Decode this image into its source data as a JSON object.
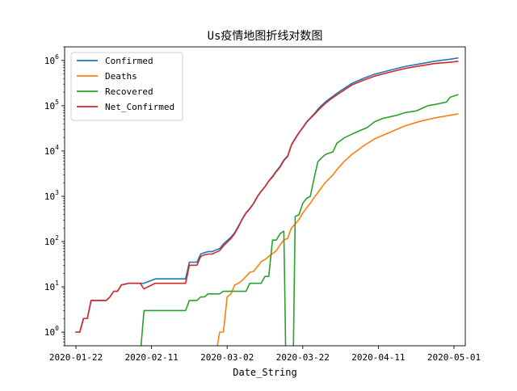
{
  "chart_data": {
    "type": "line",
    "title": "Us疫情地图折线对数图",
    "xlabel": "Date_String",
    "ylabel": "",
    "yscale": "log",
    "ylim": [
      0.5,
      2000000
    ],
    "xlim": [
      "2020-01-19",
      "2020-05-04"
    ],
    "grid": false,
    "legend_position": "upper-left",
    "x_ticks": [
      "2020-01-22",
      "2020-02-11",
      "2020-03-02",
      "2020-03-22",
      "2020-04-11",
      "2020-05-01"
    ],
    "y_ticks": [
      {
        "value": 1,
        "base": "10",
        "exp": "0"
      },
      {
        "value": 10,
        "base": "10",
        "exp": "1"
      },
      {
        "value": 100,
        "base": "10",
        "exp": "2"
      },
      {
        "value": 1000,
        "base": "10",
        "exp": "3"
      },
      {
        "value": 10000,
        "base": "10",
        "exp": "4"
      },
      {
        "value": 100000,
        "base": "10",
        "exp": "5"
      },
      {
        "value": 1000000,
        "base": "10",
        "exp": "6"
      }
    ],
    "series": [
      {
        "name": "Confirmed",
        "color": "#1f77b4",
        "points": [
          [
            "2020-01-22",
            1
          ],
          [
            "2020-01-23",
            1
          ],
          [
            "2020-01-24",
            2
          ],
          [
            "2020-01-25",
            2
          ],
          [
            "2020-01-26",
            5
          ],
          [
            "2020-01-30",
            5
          ],
          [
            "2020-01-31",
            6
          ],
          [
            "2020-02-01",
            8
          ],
          [
            "2020-02-02",
            8
          ],
          [
            "2020-02-03",
            11
          ],
          [
            "2020-02-05",
            12
          ],
          [
            "2020-02-08",
            12
          ],
          [
            "2020-02-09",
            12
          ],
          [
            "2020-02-10",
            13
          ],
          [
            "2020-02-12",
            15
          ],
          [
            "2020-02-20",
            15
          ],
          [
            "2020-02-21",
            35
          ],
          [
            "2020-02-23",
            35
          ],
          [
            "2020-02-24",
            53
          ],
          [
            "2020-02-25",
            57
          ],
          [
            "2020-02-26",
            60
          ],
          [
            "2020-02-27",
            60
          ],
          [
            "2020-02-28",
            65
          ],
          [
            "2020-02-29",
            70
          ],
          [
            "2020-03-01",
            88
          ],
          [
            "2020-03-02",
            105
          ],
          [
            "2020-03-03",
            125
          ],
          [
            "2020-03-04",
            158
          ],
          [
            "2020-03-05",
            221
          ],
          [
            "2020-03-06",
            319
          ],
          [
            "2020-03-07",
            435
          ],
          [
            "2020-03-08",
            541
          ],
          [
            "2020-03-09",
            704
          ],
          [
            "2020-03-10",
            994
          ],
          [
            "2020-03-11",
            1301
          ],
          [
            "2020-03-12",
            1630
          ],
          [
            "2020-03-13",
            2183
          ],
          [
            "2020-03-14",
            2770
          ],
          [
            "2020-03-15",
            3613
          ],
          [
            "2020-03-16",
            4596
          ],
          [
            "2020-03-17",
            6344
          ],
          [
            "2020-03-18",
            7770
          ],
          [
            "2020-03-19",
            13680
          ],
          [
            "2020-03-20",
            19100
          ],
          [
            "2020-03-21",
            25500
          ],
          [
            "2020-03-22",
            33300
          ],
          [
            "2020-03-23",
            43800
          ],
          [
            "2020-03-24",
            53700
          ],
          [
            "2020-03-25",
            65800
          ],
          [
            "2020-03-26",
            83800
          ],
          [
            "2020-03-27",
            101700
          ],
          [
            "2020-03-28",
            121500
          ],
          [
            "2020-03-29",
            140900
          ],
          [
            "2020-03-30",
            161800
          ],
          [
            "2020-03-31",
            188200
          ],
          [
            "2020-04-02",
            243600
          ],
          [
            "2020-04-04",
            311400
          ],
          [
            "2020-04-07",
            400300
          ],
          [
            "2020-04-10",
            496500
          ],
          [
            "2020-04-14",
            607700
          ],
          [
            "2020-04-18",
            735100
          ],
          [
            "2020-04-22",
            840500
          ],
          [
            "2020-04-26",
            965800
          ],
          [
            "2020-04-30",
            1069400
          ],
          [
            "2020-05-02",
            1133000
          ]
        ]
      },
      {
        "name": "Deaths",
        "color": "#ff7f0e",
        "points": [
          [
            "2020-02-28",
            0.3
          ],
          [
            "2020-02-29",
            1
          ],
          [
            "2020-03-01",
            1
          ],
          [
            "2020-03-02",
            6
          ],
          [
            "2020-03-03",
            7
          ],
          [
            "2020-03-04",
            11
          ],
          [
            "2020-03-05",
            12
          ],
          [
            "2020-03-06",
            14
          ],
          [
            "2020-03-07",
            17
          ],
          [
            "2020-03-08",
            21
          ],
          [
            "2020-03-09",
            22
          ],
          [
            "2020-03-10",
            28
          ],
          [
            "2020-03-11",
            36
          ],
          [
            "2020-03-12",
            40
          ],
          [
            "2020-03-13",
            47
          ],
          [
            "2020-03-14",
            54
          ],
          [
            "2020-03-15",
            63
          ],
          [
            "2020-03-16",
            85
          ],
          [
            "2020-03-17",
            108
          ],
          [
            "2020-03-18",
            118
          ],
          [
            "2020-03-19",
            200
          ],
          [
            "2020-03-20",
            244
          ],
          [
            "2020-03-21",
            307
          ],
          [
            "2020-03-22",
            427
          ],
          [
            "2020-03-23",
            552
          ],
          [
            "2020-03-24",
            706
          ],
          [
            "2020-03-25",
            942
          ],
          [
            "2020-03-26",
            1209
          ],
          [
            "2020-03-27",
            1581
          ],
          [
            "2020-03-28",
            2026
          ],
          [
            "2020-03-29",
            2467
          ],
          [
            "2020-03-30",
            2978
          ],
          [
            "2020-03-31",
            3873
          ],
          [
            "2020-04-02",
            5926
          ],
          [
            "2020-04-04",
            8407
          ],
          [
            "2020-04-07",
            12844
          ],
          [
            "2020-04-10",
            18600
          ],
          [
            "2020-04-14",
            25800
          ],
          [
            "2020-04-18",
            35900
          ],
          [
            "2020-04-22",
            45300
          ],
          [
            "2020-04-26",
            53900
          ],
          [
            "2020-04-30",
            61700
          ],
          [
            "2020-05-02",
            65800
          ]
        ]
      },
      {
        "name": "Recovered",
        "color": "#2ca02c",
        "points": [
          [
            "2020-02-08",
            0.3
          ],
          [
            "2020-02-09",
            3
          ],
          [
            "2020-02-20",
            3
          ],
          [
            "2020-02-21",
            5
          ],
          [
            "2020-02-23",
            5
          ],
          [
            "2020-02-24",
            6
          ],
          [
            "2020-02-25",
            6
          ],
          [
            "2020-02-26",
            7
          ],
          [
            "2020-02-29",
            7
          ],
          [
            "2020-03-01",
            8
          ],
          [
            "2020-03-07",
            8
          ],
          [
            "2020-03-08",
            12
          ],
          [
            "2020-03-11",
            12
          ],
          [
            "2020-03-12",
            17
          ],
          [
            "2020-03-13",
            17
          ],
          [
            "2020-03-14",
            108
          ],
          [
            "2020-03-15",
            108
          ],
          [
            "2020-03-16",
            150
          ],
          [
            "2020-03-17",
            170
          ],
          [
            "2020-03-17.5",
            0.3
          ],
          [
            "2020-03-19.5",
            0.3
          ],
          [
            "2020-03-20",
            360
          ],
          [
            "2020-03-21",
            390
          ],
          [
            "2020-03-22",
            700
          ],
          [
            "2020-03-23",
            900
          ],
          [
            "2020-03-24",
            1000
          ],
          [
            "2020-03-25",
            2500
          ],
          [
            "2020-03-26",
            5800
          ],
          [
            "2020-03-27",
            7100
          ],
          [
            "2020-03-28",
            8400
          ],
          [
            "2020-03-29",
            9000
          ],
          [
            "2020-03-30",
            9600
          ],
          [
            "2020-03-31",
            14800
          ],
          [
            "2020-04-02",
            19600
          ],
          [
            "2020-04-04",
            23600
          ],
          [
            "2020-04-06",
            28000
          ],
          [
            "2020-04-08",
            32800
          ],
          [
            "2020-04-10",
            44300
          ],
          [
            "2020-04-12",
            52000
          ],
          [
            "2020-04-14",
            56800
          ],
          [
            "2020-04-16",
            62000
          ],
          [
            "2020-04-18",
            70300
          ],
          [
            "2020-04-21",
            76800
          ],
          [
            "2020-04-24",
            99800
          ],
          [
            "2020-04-26",
            106900
          ],
          [
            "2020-04-29",
            120700
          ],
          [
            "2020-04-30",
            153900
          ],
          [
            "2020-05-02",
            175300
          ]
        ]
      },
      {
        "name": "Net_Confirmed",
        "color": "#d62728",
        "points": [
          [
            "2020-01-22",
            1
          ],
          [
            "2020-01-23",
            1
          ],
          [
            "2020-01-24",
            2
          ],
          [
            "2020-01-25",
            2
          ],
          [
            "2020-01-26",
            5
          ],
          [
            "2020-01-30",
            5
          ],
          [
            "2020-01-31",
            6
          ],
          [
            "2020-02-01",
            8
          ],
          [
            "2020-02-02",
            8
          ],
          [
            "2020-02-03",
            11
          ],
          [
            "2020-02-05",
            12
          ],
          [
            "2020-02-08",
            12
          ],
          [
            "2020-02-09",
            9
          ],
          [
            "2020-02-10",
            10
          ],
          [
            "2020-02-12",
            12
          ],
          [
            "2020-02-20",
            12
          ],
          [
            "2020-02-21",
            30
          ],
          [
            "2020-02-23",
            30
          ],
          [
            "2020-02-24",
            47
          ],
          [
            "2020-02-25",
            51
          ],
          [
            "2020-02-26",
            53
          ],
          [
            "2020-02-27",
            53
          ],
          [
            "2020-02-28",
            58
          ],
          [
            "2020-02-29",
            63
          ],
          [
            "2020-03-01",
            80
          ],
          [
            "2020-03-02",
            97
          ],
          [
            "2020-03-03",
            117
          ],
          [
            "2020-03-04",
            150
          ],
          [
            "2020-03-05",
            213
          ],
          [
            "2020-03-06",
            311
          ],
          [
            "2020-03-07",
            427
          ],
          [
            "2020-03-08",
            529
          ],
          [
            "2020-03-09",
            692
          ],
          [
            "2020-03-10",
            982
          ],
          [
            "2020-03-11",
            1289
          ],
          [
            "2020-03-12",
            1613
          ],
          [
            "2020-03-13",
            2166
          ],
          [
            "2020-03-14",
            2662
          ],
          [
            "2020-03-15",
            3505
          ],
          [
            "2020-03-16",
            4446
          ],
          [
            "2020-03-17",
            6174
          ],
          [
            "2020-03-18",
            7600
          ],
          [
            "2020-03-19",
            13480
          ],
          [
            "2020-03-20",
            18740
          ],
          [
            "2020-03-21",
            25110
          ],
          [
            "2020-03-22",
            32600
          ],
          [
            "2020-03-23",
            42900
          ],
          [
            "2020-03-24",
            52700
          ],
          [
            "2020-03-25",
            63300
          ],
          [
            "2020-03-26",
            78000
          ],
          [
            "2020-03-27",
            94600
          ],
          [
            "2020-03-28",
            113100
          ],
          [
            "2020-03-29",
            131900
          ],
          [
            "2020-03-30",
            152200
          ],
          [
            "2020-03-31",
            173400
          ],
          [
            "2020-04-02",
            224000
          ],
          [
            "2020-04-04",
            287800
          ],
          [
            "2020-04-07",
            365000
          ],
          [
            "2020-04-10",
            452200
          ],
          [
            "2020-04-14",
            550900
          ],
          [
            "2020-04-18",
            664800
          ],
          [
            "2020-04-22",
            760000
          ],
          [
            "2020-04-26",
            858900
          ],
          [
            "2020-04-30",
            915500
          ],
          [
            "2020-05-02",
            957700
          ]
        ]
      }
    ]
  }
}
